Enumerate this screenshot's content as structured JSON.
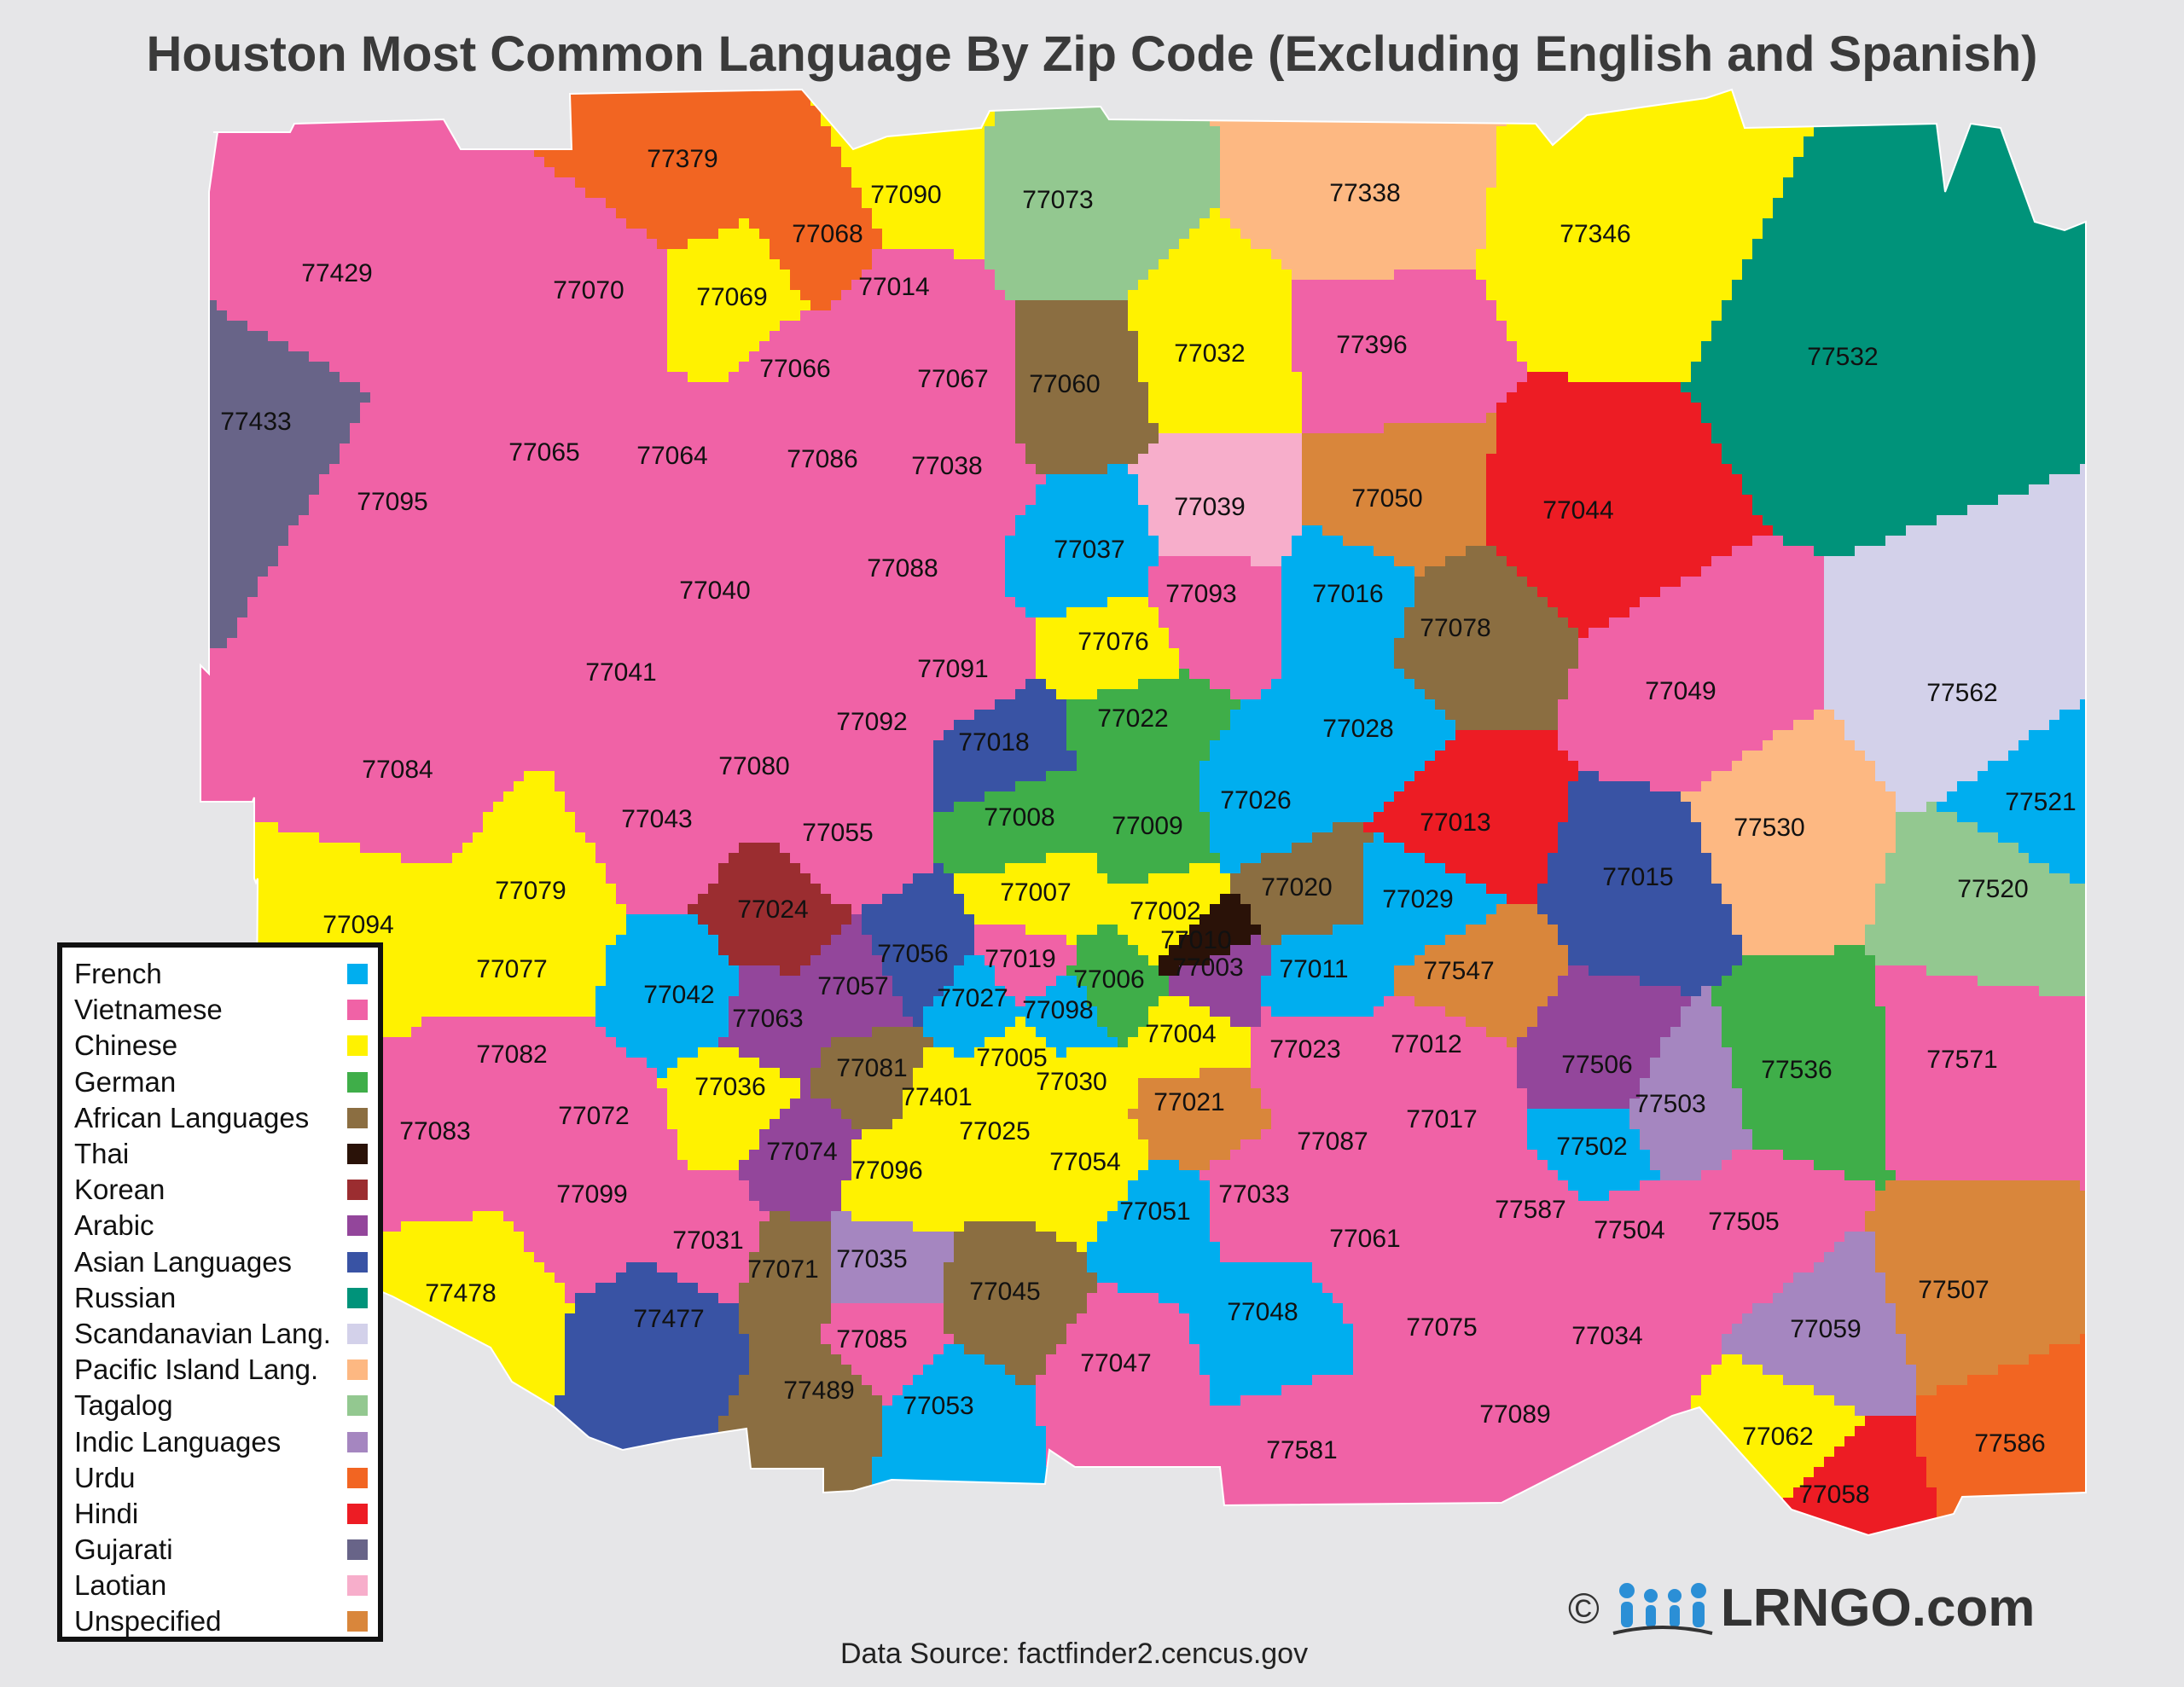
{
  "title": "Houston Most Common Language By Zip Code (Excluding English and Spanish)",
  "source": "Data Source: factfinder2.cencus.gov",
  "logo": {
    "copyright": "©",
    "text": "LRNGO.com"
  },
  "colors": {
    "French": "#00aeef",
    "Vietnamese": "#f062a6",
    "Chinese": "#fff200",
    "German": "#3fae49",
    "African Languages": "#8b6e41",
    "Thai": "#2a1208",
    "Korean": "#9b2d30",
    "Arabic": "#93469b",
    "Asian Languages": "#3953a4",
    "Russian": "#00937a",
    "Scandanavian Lang.": "#d3d1ea",
    "Pacific Island Lang.": "#fdb882",
    "Tagalog": "#93c890",
    "Indic Languages": "#a586c0",
    "Urdu": "#f26522",
    "Hindi": "#ed1c24",
    "Gujarati": "#686488",
    "Laotian": "#f7aecb",
    "Unspecified": "#d9863b"
  },
  "legend": [
    "French",
    "Vietnamese",
    "Chinese",
    "German",
    "African Languages",
    "Thai",
    "Korean",
    "Arabic",
    "Asian Languages",
    "Russian",
    "Scandanavian Lang.",
    "Pacific Island Lang.",
    "Tagalog",
    "Indic Languages",
    "Urdu",
    "Hindi",
    "Gujarati",
    "Laotian",
    "Unspecified"
  ],
  "zips": [
    {
      "zip": "77379",
      "lang": "Urdu"
    },
    {
      "zip": "77068",
      "lang": "Urdu"
    },
    {
      "zip": "77090",
      "lang": "Chinese"
    },
    {
      "zip": "77073",
      "lang": "Tagalog"
    },
    {
      "zip": "77338",
      "lang": "Pacific Island Lang."
    },
    {
      "zip": "77346",
      "lang": "Chinese"
    },
    {
      "zip": "77532",
      "lang": "Russian"
    },
    {
      "zip": "77429",
      "lang": "Vietnamese"
    },
    {
      "zip": "77070",
      "lang": "Vietnamese"
    },
    {
      "zip": "77069",
      "lang": "Chinese"
    },
    {
      "zip": "77014",
      "lang": "Vietnamese"
    },
    {
      "zip": "77066",
      "lang": "Vietnamese"
    },
    {
      "zip": "77067",
      "lang": "Vietnamese"
    },
    {
      "zip": "77060",
      "lang": "African Languages"
    },
    {
      "zip": "77032",
      "lang": "Chinese"
    },
    {
      "zip": "77396",
      "lang": "Vietnamese"
    },
    {
      "zip": "77433",
      "lang": "Gujarati"
    },
    {
      "zip": "77065",
      "lang": "Vietnamese"
    },
    {
      "zip": "77064",
      "lang": "Vietnamese"
    },
    {
      "zip": "77086",
      "lang": "Vietnamese"
    },
    {
      "zip": "77038",
      "lang": "Vietnamese"
    },
    {
      "zip": "77039",
      "lang": "Laotian"
    },
    {
      "zip": "77050",
      "lang": "Unspecified"
    },
    {
      "zip": "77044",
      "lang": "Hindi"
    },
    {
      "zip": "77095",
      "lang": "Vietnamese"
    },
    {
      "zip": "77037",
      "lang": "French"
    },
    {
      "zip": "77088",
      "lang": "Vietnamese"
    },
    {
      "zip": "77040",
      "lang": "Vietnamese"
    },
    {
      "zip": "77093",
      "lang": "Vietnamese"
    },
    {
      "zip": "77016",
      "lang": "French"
    },
    {
      "zip": "77078",
      "lang": "African Languages"
    },
    {
      "zip": "77076",
      "lang": "Chinese"
    },
    {
      "zip": "77041",
      "lang": "Vietnamese"
    },
    {
      "zip": "77091",
      "lang": "Vietnamese"
    },
    {
      "zip": "77049",
      "lang": "Vietnamese"
    },
    {
      "zip": "77562",
      "lang": "Scandanavian Lang."
    },
    {
      "zip": "77092",
      "lang": "Vietnamese"
    },
    {
      "zip": "77018",
      "lang": "Asian Languages"
    },
    {
      "zip": "77022",
      "lang": "German"
    },
    {
      "zip": "77028",
      "lang": "French"
    },
    {
      "zip": "77084",
      "lang": "Vietnamese"
    },
    {
      "zip": "77080",
      "lang": "Vietnamese"
    },
    {
      "zip": "77026",
      "lang": "French"
    },
    {
      "zip": "77013",
      "lang": "Hindi"
    },
    {
      "zip": "77008",
      "lang": "German"
    },
    {
      "zip": "77009",
      "lang": "German"
    },
    {
      "zip": "77530",
      "lang": "Pacific Island Lang."
    },
    {
      "zip": "77521",
      "lang": "French"
    },
    {
      "zip": "77043",
      "lang": "Vietnamese"
    },
    {
      "zip": "77055",
      "lang": "Vietnamese"
    },
    {
      "zip": "77015",
      "lang": "Asian Languages"
    },
    {
      "zip": "77520",
      "lang": "Tagalog"
    },
    {
      "zip": "77079",
      "lang": "Chinese"
    },
    {
      "zip": "77007",
      "lang": "Chinese"
    },
    {
      "zip": "77020",
      "lang": "African Languages"
    },
    {
      "zip": "77024",
      "lang": "Korean"
    },
    {
      "zip": "77002",
      "lang": "Chinese"
    },
    {
      "zip": "77029",
      "lang": "French"
    },
    {
      "zip": "77094",
      "lang": "Chinese"
    },
    {
      "zip": "77010",
      "lang": "Thai"
    },
    {
      "zip": "77056",
      "lang": "Asian Languages"
    },
    {
      "zip": "77019",
      "lang": "Vietnamese"
    },
    {
      "zip": "77003",
      "lang": "Arabic"
    },
    {
      "zip": "77011",
      "lang": "French"
    },
    {
      "zip": "77077",
      "lang": "Chinese"
    },
    {
      "zip": "77547",
      "lang": "Unspecified"
    },
    {
      "zip": "77042",
      "lang": "French"
    },
    {
      "zip": "77057",
      "lang": "Arabic"
    },
    {
      "zip": "77006",
      "lang": "German"
    },
    {
      "zip": "77027",
      "lang": "French"
    },
    {
      "zip": "77098",
      "lang": "French"
    },
    {
      "zip": "77063",
      "lang": "Arabic"
    },
    {
      "zip": "77004",
      "lang": "Chinese"
    },
    {
      "zip": "77023",
      "lang": "Vietnamese"
    },
    {
      "zip": "77012",
      "lang": "Vietnamese"
    },
    {
      "zip": "77506",
      "lang": "Arabic"
    },
    {
      "zip": "77536",
      "lang": "German"
    },
    {
      "zip": "77571",
      "lang": "Vietnamese"
    },
    {
      "zip": "77082",
      "lang": "Vietnamese"
    },
    {
      "zip": "77005",
      "lang": "Chinese"
    },
    {
      "zip": "77081",
      "lang": "African Languages"
    },
    {
      "zip": "77036",
      "lang": "Chinese"
    },
    {
      "zip": "77030",
      "lang": "Chinese"
    },
    {
      "zip": "77401",
      "lang": "Chinese"
    },
    {
      "zip": "77021",
      "lang": "Unspecified"
    },
    {
      "zip": "77503",
      "lang": "Indic Languages"
    },
    {
      "zip": "77083",
      "lang": "Vietnamese"
    },
    {
      "zip": "77072",
      "lang": "Vietnamese"
    },
    {
      "zip": "77017",
      "lang": "Vietnamese"
    },
    {
      "zip": "77025",
      "lang": "Chinese"
    },
    {
      "zip": "77087",
      "lang": "Vietnamese"
    },
    {
      "zip": "77074",
      "lang": "Arabic"
    },
    {
      "zip": "77502",
      "lang": "French"
    },
    {
      "zip": "77096",
      "lang": "Chinese"
    },
    {
      "zip": "77054",
      "lang": "Chinese"
    },
    {
      "zip": "77099",
      "lang": "Vietnamese"
    },
    {
      "zip": "77033",
      "lang": "Vietnamese"
    },
    {
      "zip": "77051",
      "lang": "French"
    },
    {
      "zip": "77587",
      "lang": "Vietnamese"
    },
    {
      "zip": "77504",
      "lang": "Vietnamese"
    },
    {
      "zip": "77505",
      "lang": "Vietnamese"
    },
    {
      "zip": "77061",
      "lang": "Vietnamese"
    },
    {
      "zip": "77031",
      "lang": "Vietnamese"
    },
    {
      "zip": "77071",
      "lang": "African Languages"
    },
    {
      "zip": "77035",
      "lang": "Indic Languages"
    },
    {
      "zip": "77478",
      "lang": "Chinese"
    },
    {
      "zip": "77045",
      "lang": "African Languages"
    },
    {
      "zip": "77507",
      "lang": "Unspecified"
    },
    {
      "zip": "77048",
      "lang": "French"
    },
    {
      "zip": "77477",
      "lang": "Asian Languages"
    },
    {
      "zip": "77075",
      "lang": "Vietnamese"
    },
    {
      "zip": "77034",
      "lang": "Vietnamese"
    },
    {
      "zip": "77059",
      "lang": "Indic Languages"
    },
    {
      "zip": "77085",
      "lang": "Vietnamese"
    },
    {
      "zip": "77047",
      "lang": "Vietnamese"
    },
    {
      "zip": "77489",
      "lang": "African Languages"
    },
    {
      "zip": "77053",
      "lang": "French"
    },
    {
      "zip": "77089",
      "lang": "Vietnamese"
    },
    {
      "zip": "77062",
      "lang": "Chinese"
    },
    {
      "zip": "77586",
      "lang": "Urdu"
    },
    {
      "zip": "77581",
      "lang": "Vietnamese"
    },
    {
      "zip": "77058",
      "lang": "Hindi"
    }
  ]
}
